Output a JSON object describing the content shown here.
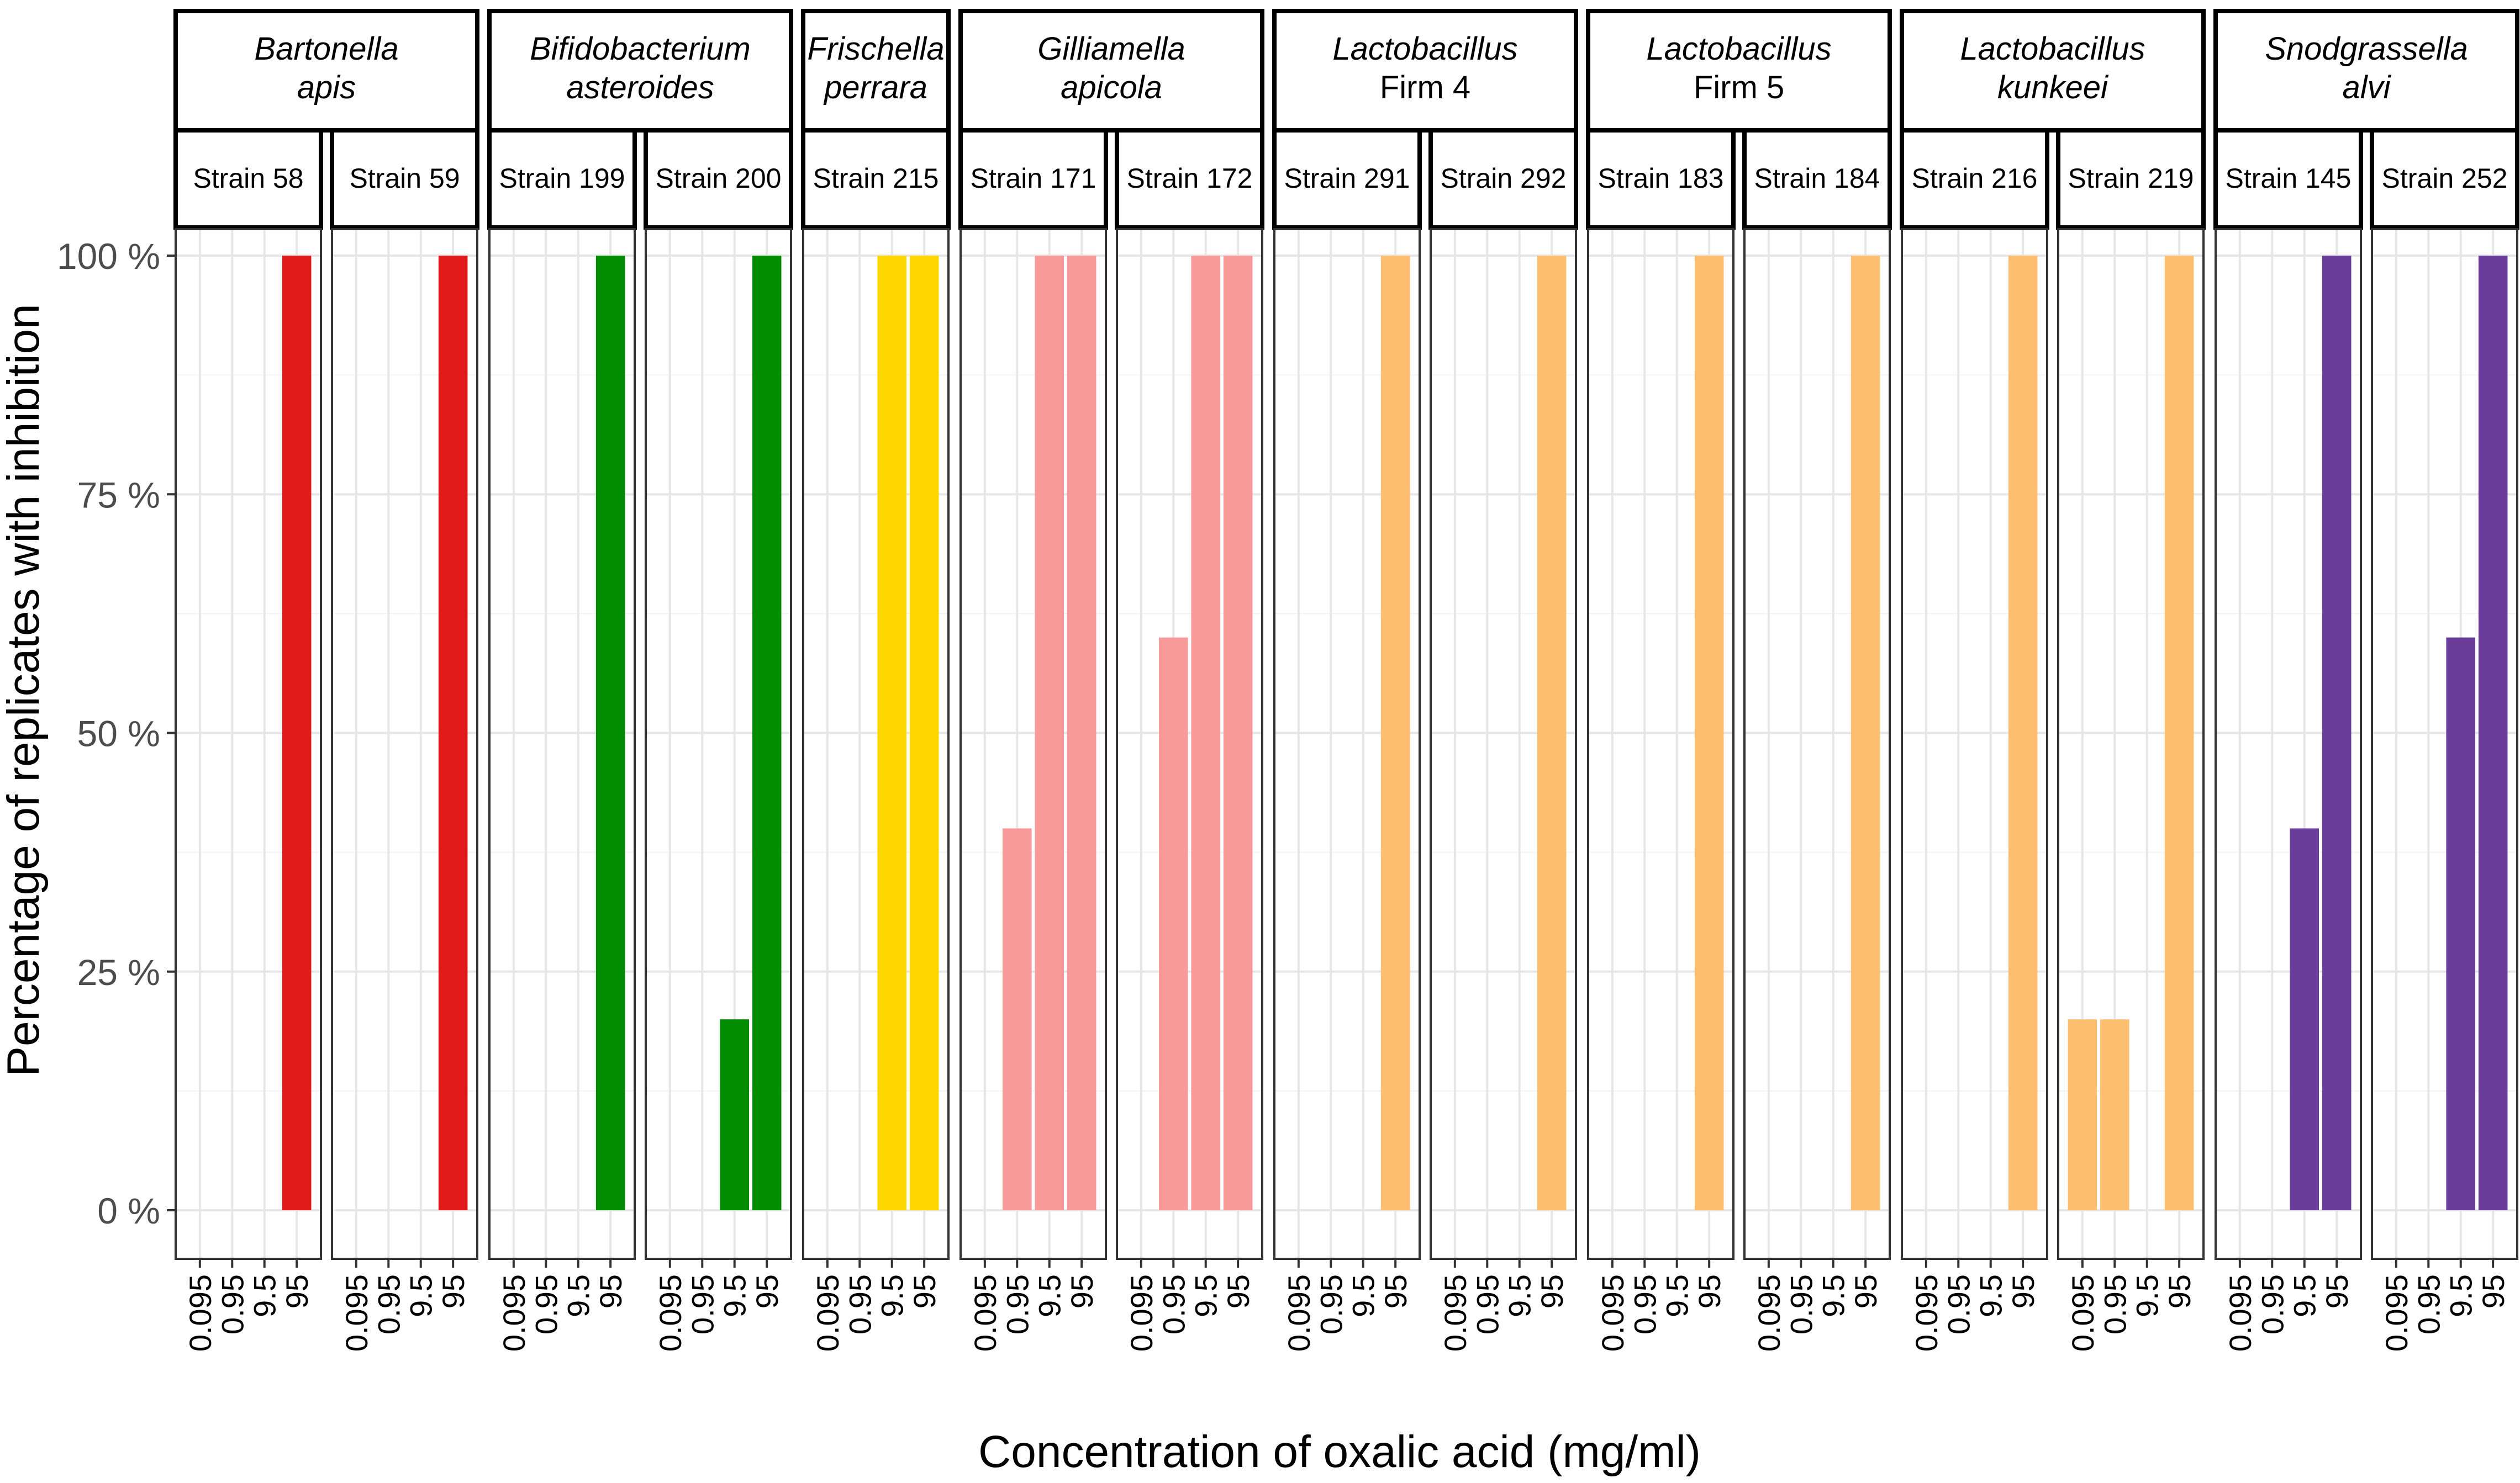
{
  "chart_data": {
    "type": "bar",
    "xlabel": "Concentration of oxalic acid (mg/ml)",
    "ylabel": "Percentage of replicates with inhibition",
    "x_categories": [
      "0.095",
      "0.95",
      "9.5",
      "95"
    ],
    "y_ticks": [
      0,
      25,
      50,
      75,
      100
    ],
    "y_tick_labels": [
      "0 %",
      "25 %",
      "50 %",
      "75 %",
      "100 %"
    ],
    "ylim": [
      0,
      100
    ],
    "grid": true,
    "legend": "none",
    "species": [
      {
        "name_lines": [
          "Bartonella",
          "apis"
        ],
        "italic_lines": [
          true,
          true
        ],
        "color": "#E31A1C",
        "strains": [
          {
            "label": "Strain 58",
            "values": [
              0,
              0,
              0,
              100
            ]
          },
          {
            "label": "Strain 59",
            "values": [
              0,
              0,
              0,
              100
            ]
          }
        ]
      },
      {
        "name_lines": [
          "Bifidobacterium",
          "asteroides"
        ],
        "italic_lines": [
          true,
          true
        ],
        "color": "#008B00",
        "strains": [
          {
            "label": "Strain 199",
            "values": [
              0,
              0,
              0,
              100
            ]
          },
          {
            "label": "Strain 200",
            "values": [
              0,
              0,
              20,
              100
            ]
          }
        ]
      },
      {
        "name_lines": [
          "Frischella",
          "perrara"
        ],
        "italic_lines": [
          true,
          true
        ],
        "color": "#FFD700",
        "strains": [
          {
            "label": "Strain 215",
            "values": [
              0,
              0,
              100,
              100
            ]
          }
        ]
      },
      {
        "name_lines": [
          "Gilliamella",
          "apicola"
        ],
        "italic_lines": [
          true,
          true
        ],
        "color": "#F89A9A",
        "strains": [
          {
            "label": "Strain 171",
            "values": [
              0,
              40,
              100,
              100
            ]
          },
          {
            "label": "Strain 172",
            "values": [
              0,
              60,
              100,
              100
            ]
          }
        ]
      },
      {
        "name_lines": [
          "Lactobacillus",
          "Firm 4"
        ],
        "italic_lines": [
          true,
          false
        ],
        "color": "#FDBF6F",
        "strains": [
          {
            "label": "Strain 291",
            "values": [
              0,
              0,
              0,
              100
            ]
          },
          {
            "label": "Strain 292",
            "values": [
              0,
              0,
              0,
              100
            ]
          }
        ]
      },
      {
        "name_lines": [
          "Lactobacillus",
          "Firm 5"
        ],
        "italic_lines": [
          true,
          false
        ],
        "color": "#FDBF6F",
        "strains": [
          {
            "label": "Strain 183",
            "values": [
              0,
              0,
              0,
              100
            ]
          },
          {
            "label": "Strain 184",
            "values": [
              0,
              0,
              0,
              100
            ]
          }
        ]
      },
      {
        "name_lines": [
          "Lactobacillus",
          "kunkeei"
        ],
        "italic_lines": [
          true,
          true
        ],
        "color": "#FDBF6F",
        "strains": [
          {
            "label": "Strain 216",
            "values": [
              0,
              0,
              0,
              100
            ]
          },
          {
            "label": "Strain 219",
            "values": [
              20,
              20,
              0,
              100
            ]
          }
        ]
      },
      {
        "name_lines": [
          "Snodgrassella",
          "alvi"
        ],
        "italic_lines": [
          true,
          true
        ],
        "color": "#6A3D9A",
        "strains": [
          {
            "label": "Strain 145",
            "values": [
              0,
              0,
              40,
              100
            ]
          },
          {
            "label": "Strain 252",
            "values": [
              0,
              0,
              60,
              100
            ]
          }
        ]
      }
    ]
  }
}
